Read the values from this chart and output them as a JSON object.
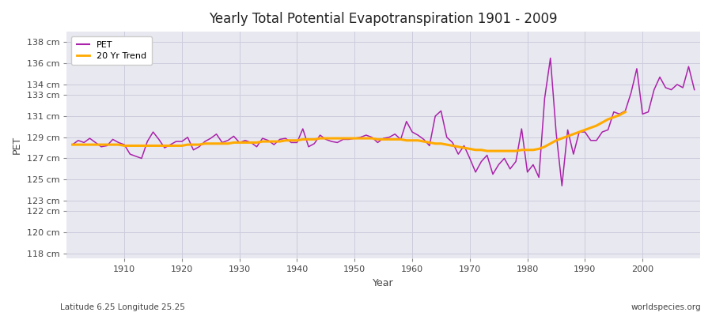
{
  "title": "Yearly Total Potential Evapotranspiration 1901 - 2009",
  "xlabel": "Year",
  "ylabel": "PET",
  "subtitle": "Latitude 6.25 Longitude 25.25",
  "watermark": "worldspecies.org",
  "pet_color": "#aa22aa",
  "trend_color": "#ffaa00",
  "fig_bg_color": "#ffffff",
  "plot_bg_color": "#e8e8f0",
  "grid_color": "#ccccdd",
  "ylim_bottom": 117.5,
  "ylim_top": 139.0,
  "xlim_left": 1900,
  "xlim_right": 2010,
  "ytick_vals": [
    118,
    120,
    122,
    123,
    125,
    127,
    129,
    131,
    133,
    134,
    136,
    138
  ],
  "xtick_vals": [
    1910,
    1920,
    1930,
    1940,
    1950,
    1960,
    1970,
    1980,
    1990,
    2000
  ],
  "years": [
    1901,
    1902,
    1903,
    1904,
    1905,
    1906,
    1907,
    1908,
    1909,
    1910,
    1911,
    1912,
    1913,
    1914,
    1915,
    1916,
    1917,
    1918,
    1919,
    1920,
    1921,
    1922,
    1923,
    1924,
    1925,
    1926,
    1927,
    1928,
    1929,
    1930,
    1931,
    1932,
    1933,
    1934,
    1935,
    1936,
    1937,
    1938,
    1939,
    1940,
    1941,
    1942,
    1943,
    1944,
    1945,
    1946,
    1947,
    1948,
    1949,
    1950,
    1951,
    1952,
    1953,
    1954,
    1955,
    1956,
    1957,
    1958,
    1959,
    1960,
    1961,
    1962,
    1963,
    1964,
    1965,
    1966,
    1967,
    1968,
    1969,
    1970,
    1971,
    1972,
    1973,
    1974,
    1975,
    1976,
    1977,
    1978,
    1979,
    1980,
    1981,
    1982,
    1983,
    1984,
    1985,
    1986,
    1987,
    1988,
    1989,
    1990,
    1991,
    1992,
    1993,
    1994,
    1995,
    1996,
    1997,
    1998,
    1999,
    2000,
    2001,
    2002,
    2003,
    2004,
    2005,
    2006,
    2007,
    2008,
    2009
  ],
  "pet_values": [
    128.3,
    128.7,
    128.5,
    128.9,
    128.5,
    128.1,
    128.2,
    128.8,
    128.5,
    128.3,
    127.4,
    127.2,
    127.0,
    128.6,
    129.5,
    128.8,
    128.0,
    128.3,
    128.6,
    128.6,
    129.0,
    127.8,
    128.1,
    128.6,
    128.9,
    129.3,
    128.5,
    128.7,
    129.1,
    128.5,
    128.7,
    128.5,
    128.1,
    128.9,
    128.7,
    128.3,
    128.8,
    128.9,
    128.5,
    128.5,
    129.8,
    128.1,
    128.4,
    129.2,
    128.8,
    128.6,
    128.5,
    128.8,
    128.8,
    128.9,
    129.0,
    129.2,
    129.0,
    128.5,
    128.9,
    129.0,
    129.3,
    128.8,
    130.5,
    129.5,
    129.2,
    128.8,
    128.2,
    131.0,
    131.5,
    129.0,
    128.5,
    127.4,
    128.2,
    127.0,
    125.7,
    126.7,
    127.3,
    125.5,
    126.4,
    127.0,
    126.0,
    126.7,
    129.8,
    125.7,
    126.4,
    125.2,
    132.7,
    136.5,
    129.4,
    124.4,
    129.7,
    127.4,
    129.5,
    129.5,
    128.7,
    128.7,
    129.5,
    129.7,
    131.4,
    131.2,
    131.5,
    133.2,
    135.5,
    131.2,
    131.4,
    133.5,
    134.7,
    133.7,
    133.5,
    134.0,
    133.7,
    135.7,
    133.5
  ],
  "trend_values": [
    128.3,
    128.3,
    128.3,
    128.3,
    128.3,
    128.3,
    128.3,
    128.3,
    128.3,
    128.2,
    128.2,
    128.2,
    128.2,
    128.2,
    128.2,
    128.2,
    128.2,
    128.2,
    128.2,
    128.2,
    128.3,
    128.3,
    128.3,
    128.4,
    128.4,
    128.4,
    128.4,
    128.4,
    128.5,
    128.5,
    128.5,
    128.5,
    128.5,
    128.6,
    128.6,
    128.6,
    128.6,
    128.7,
    128.7,
    128.7,
    128.8,
    128.8,
    128.8,
    128.9,
    128.9,
    128.9,
    128.9,
    128.9,
    128.9,
    128.9,
    128.9,
    128.9,
    128.9,
    128.8,
    128.8,
    128.8,
    128.8,
    128.8,
    128.7,
    128.7,
    128.7,
    128.6,
    128.5,
    128.4,
    128.4,
    128.3,
    128.2,
    128.1,
    128.0,
    127.9,
    127.8,
    127.8,
    127.7,
    127.7,
    127.7,
    127.7,
    127.7,
    127.7,
    127.8,
    127.8,
    127.8,
    127.9,
    128.1,
    128.4,
    128.7,
    128.9,
    129.1,
    129.3,
    129.5,
    129.7,
    129.9,
    130.1,
    130.4,
    130.7,
    130.9,
    131.1,
    131.4,
    null,
    null,
    null,
    null,
    null,
    null,
    null,
    null,
    null,
    null,
    null,
    null
  ]
}
